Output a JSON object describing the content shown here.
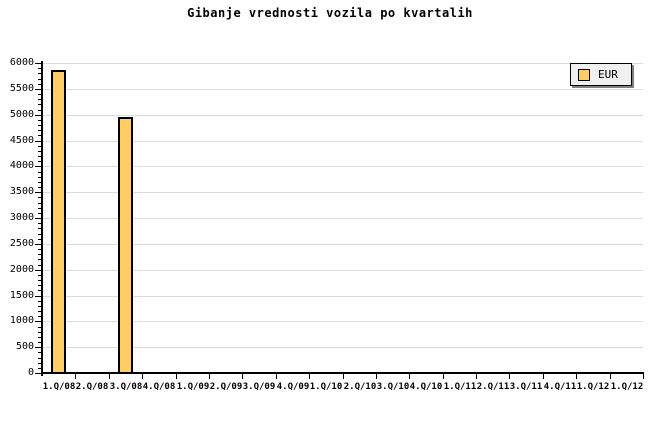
{
  "title": "Gibanje vrednosti vozila po kvartalih",
  "legend": {
    "label": "EUR"
  },
  "colors": {
    "background": "#FFFFFF",
    "bar_fill": "#FFCC66",
    "bar_border": "#000000",
    "gridline": "#DCDCDC",
    "axis": "#000000",
    "text": "#000000",
    "legend_bg": "#F0F0F0",
    "legend_shadow": "#808080"
  },
  "chart_data": {
    "type": "bar",
    "title": "Gibanje vrednosti vozila po kvartalih",
    "categories": [
      "1.Q/08",
      "2.Q/08",
      "3.Q/08",
      "4.Q/08",
      "1.Q/09",
      "2.Q/09",
      "3.Q/09",
      "4.Q/09",
      "1.Q/10",
      "2.Q/10",
      "3.Q/10",
      "4.Q/10",
      "1.Q/11",
      "2.Q/11",
      "3.Q/11",
      "4.Q/11",
      "1.Q/12",
      "1.Q/12"
    ],
    "series": [
      {
        "name": "EUR",
        "values": [
          5860,
          null,
          4960,
          null,
          null,
          null,
          null,
          null,
          null,
          null,
          null,
          null,
          null,
          null,
          null,
          null,
          null,
          null
        ]
      }
    ],
    "xlabel": "",
    "ylabel": "",
    "ylim": [
      0,
      6000
    ],
    "ytick_step": 500,
    "y_minor_step": 100,
    "grid": true,
    "legend_position": "top-right"
  }
}
